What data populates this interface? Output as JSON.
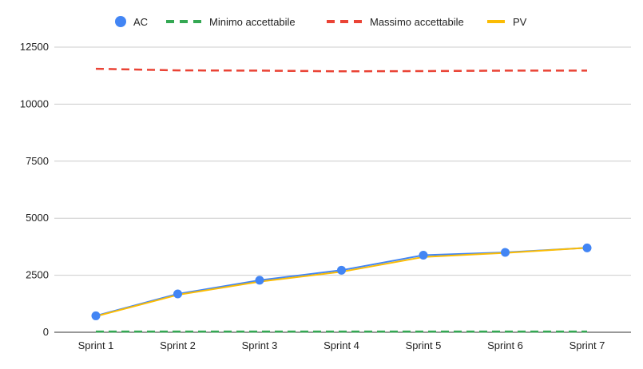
{
  "chart_data": {
    "type": "line",
    "title": "",
    "xlabel": "",
    "ylabel": "",
    "categories": [
      "Sprint 1",
      "Sprint 2",
      "Sprint 3",
      "Sprint 4",
      "Sprint 5",
      "Sprint 6",
      "Sprint 7"
    ],
    "ylim": [
      0,
      12500
    ],
    "yticks": [
      "0",
      "2500",
      "5000",
      "7500",
      "10000",
      "12500"
    ],
    "grid": true,
    "legend_position": "top",
    "series": [
      {
        "name": "AC",
        "style": "line-with-points",
        "color": "#4285f4",
        "values": [
          720,
          1680,
          2280,
          2720,
          3380,
          3500,
          3700
        ]
      },
      {
        "name": "Minimo accettabile",
        "style": "dashed",
        "color": "#34a853",
        "values": [
          30,
          30,
          30,
          30,
          30,
          30,
          30
        ]
      },
      {
        "name": "Massimo accettabile",
        "style": "dashed",
        "color": "#ea4335",
        "values": [
          11550,
          11480,
          11470,
          11440,
          11450,
          11470,
          11470
        ]
      },
      {
        "name": "PV",
        "style": "line",
        "color": "#fbbc04",
        "values": [
          700,
          1640,
          2220,
          2650,
          3300,
          3480,
          3700
        ]
      }
    ]
  }
}
